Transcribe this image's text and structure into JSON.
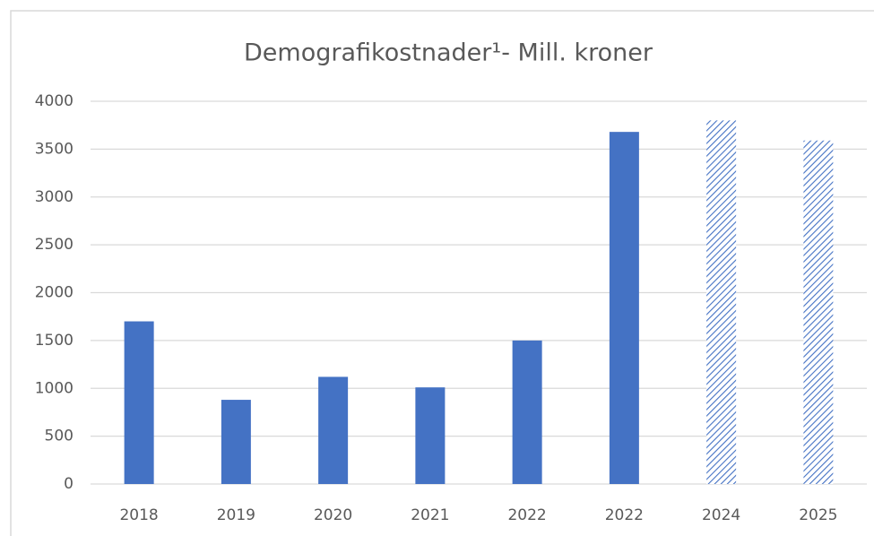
{
  "chart_data": {
    "type": "bar",
    "title": "Demografikostnader¹- Mill. kroner",
    "categories": [
      "2018",
      "2019",
      "2020",
      "2021",
      "2022",
      "2022",
      "2024",
      "2025"
    ],
    "values": [
      1700,
      880,
      1120,
      1010,
      1500,
      3680,
      3800,
      3590
    ],
    "color": "#4472c4",
    "patterns": [
      "solid",
      "solid",
      "solid",
      "solid",
      "solid",
      "solid",
      "hatch",
      "hatch"
    ],
    "ylim": [
      0,
      4000
    ],
    "yticks": [
      0,
      500,
      1000,
      1500,
      2000,
      2500,
      3000,
      3500,
      4000
    ],
    "grid": true
  }
}
